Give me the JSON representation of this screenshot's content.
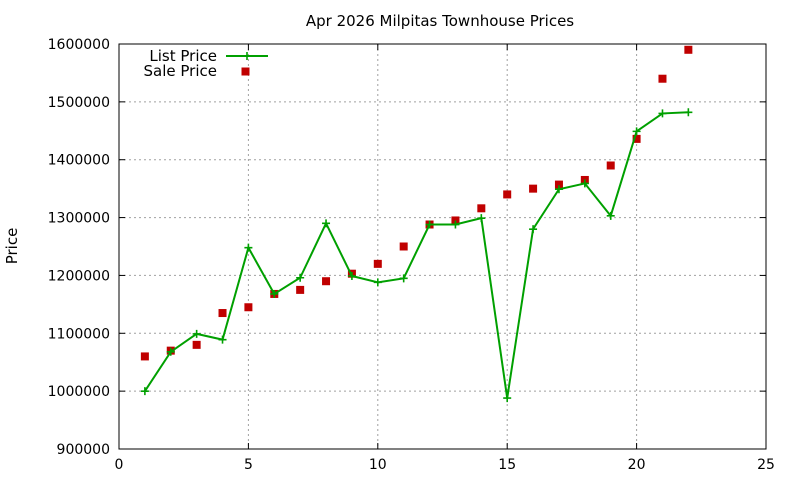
{
  "chart_data": {
    "type": "scatter",
    "title": "Apr 2026 Milpitas Townhouse Prices",
    "xlabel": "",
    "ylabel": "Price",
    "xlim": [
      0,
      25
    ],
    "ylim": [
      900000,
      1600000
    ],
    "x_ticks": [
      "0",
      "5",
      "10",
      "15",
      "20",
      "25"
    ],
    "y_ticks": [
      "900000",
      "1000000",
      "1100000",
      "1200000",
      "1300000",
      "1400000",
      "1500000",
      "1600000"
    ],
    "grid": true,
    "legend_position": "top-left",
    "series": [
      {
        "name": "List Price",
        "type": "line",
        "color": "#00a000",
        "marker": "plus",
        "x": [
          1,
          2,
          3,
          4,
          5,
          6,
          7,
          8,
          9,
          10,
          11,
          12,
          13,
          14,
          15,
          16,
          17,
          18,
          19,
          20,
          21,
          22
        ],
        "y": [
          1000000,
          1068000,
          1099000,
          1089000,
          1248000,
          1168000,
          1196000,
          1290000,
          1199000,
          1188000,
          1195000,
          1288000,
          1288000,
          1299000,
          988000,
          1280000,
          1349000,
          1359000,
          1303000,
          1449000,
          1480000,
          1482000
        ]
      },
      {
        "name": "Sale Price",
        "type": "scatter",
        "color": "#c00000",
        "marker": "square",
        "x": [
          1,
          2,
          3,
          4,
          5,
          6,
          7,
          8,
          9,
          10,
          11,
          12,
          13,
          14,
          15,
          16,
          17,
          18,
          19,
          20,
          21,
          22
        ],
        "y": [
          1060000,
          1070000,
          1080000,
          1135000,
          1145000,
          1168000,
          1175000,
          1190000,
          1203000,
          1220000,
          1250000,
          1288000,
          1295000,
          1316000,
          1340000,
          1350000,
          1357000,
          1365000,
          1390000,
          1436000,
          1540000,
          1590000
        ]
      }
    ]
  }
}
